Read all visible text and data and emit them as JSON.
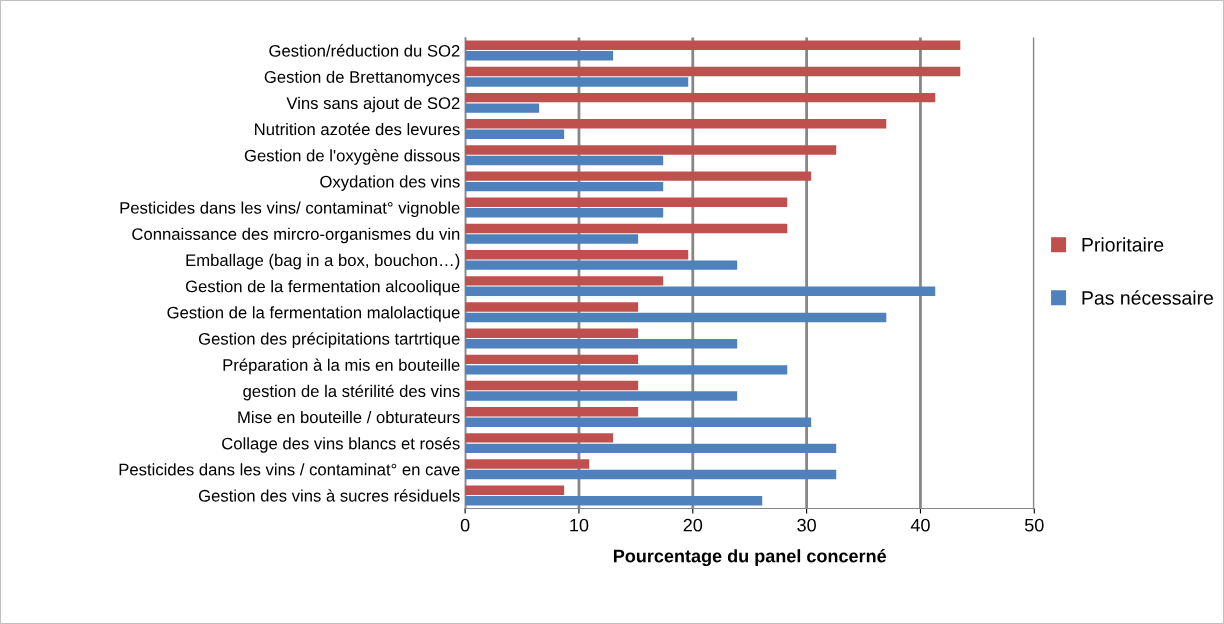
{
  "chart_data": {
    "type": "bar",
    "orientation": "horizontal",
    "xlabel": "Pourcentage du panel concerné",
    "categories": [
      "Gestion/réduction du SO2",
      "Gestion de Brettanomyces",
      "Vins sans ajout de SO2",
      "Nutrition azotée des levures",
      "Gestion de l'oxygène dissous",
      "Oxydation des vins",
      "Pesticides dans les vins/ contaminat° vignoble",
      "Connaissance des mircro-organismes du vin",
      "Emballage (bag in a box, bouchon…)",
      "Gestion de la fermentation alcoolique",
      "Gestion de la fermentation malolactique",
      "Gestion des précipitations tartrtique",
      "Préparation à la mis en bouteille",
      "gestion de la stérilité des vins",
      "Mise en bouteille / obturateurs",
      "Collage des vins blancs et rosés",
      "Pesticides dans les vins / contaminat° en cave",
      "Gestion des vins à sucres résiduels"
    ],
    "series": [
      {
        "name": "Prioritaire",
        "color": "#c0504d",
        "values": [
          43.5,
          43.5,
          41.3,
          37.0,
          32.6,
          30.4,
          28.3,
          28.3,
          19.6,
          17.4,
          15.2,
          15.2,
          15.2,
          15.2,
          15.2,
          13.0,
          10.9,
          8.7
        ]
      },
      {
        "name": "Pas nécessaire",
        "color": "#4f81bd",
        "values": [
          13.0,
          19.6,
          6.5,
          8.7,
          17.4,
          17.4,
          17.4,
          15.2,
          23.9,
          41.3,
          37.0,
          23.9,
          28.3,
          23.9,
          30.4,
          32.6,
          32.6,
          26.1
        ]
      }
    ],
    "xlim": [
      0,
      50
    ],
    "xticks": [
      0,
      10,
      20,
      30,
      40,
      50
    ],
    "grid": "x",
    "legend": "right"
  }
}
